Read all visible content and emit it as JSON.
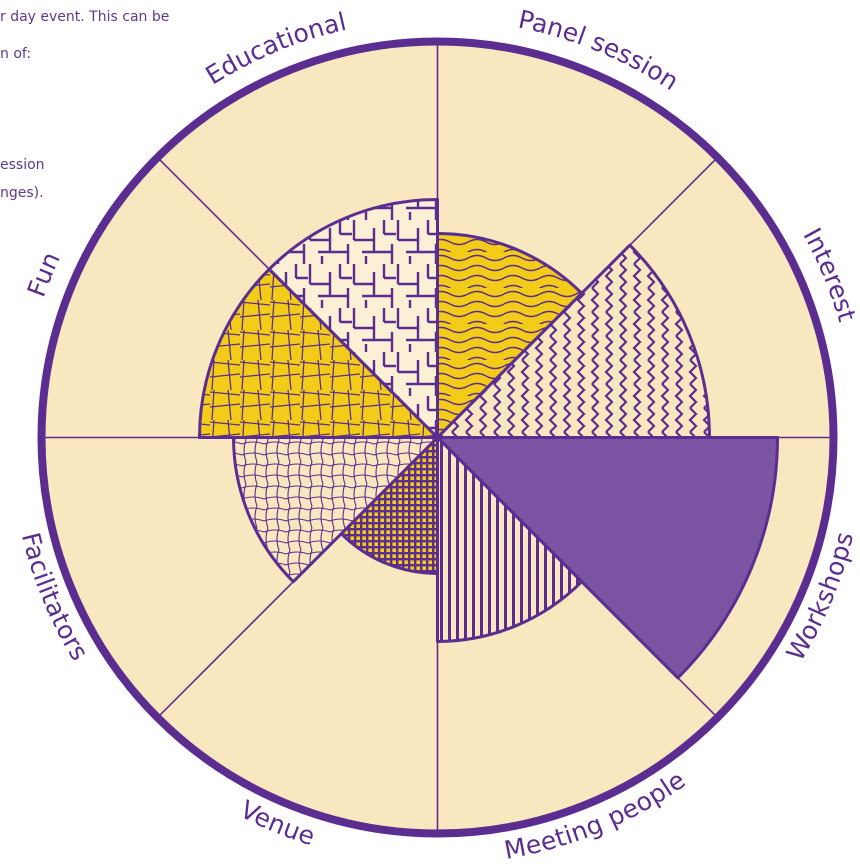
{
  "intro_fragments": [
    "r day event. This can be",
    "n of:",
    "ession",
    "nges)."
  ],
  "colors": {
    "background": "#f9e8bf",
    "outline": "#5b2d90",
    "yellow": "#f2cc18",
    "purple": "#7b55a4",
    "pattern_base": "#f9e8bf"
  },
  "chart_data": {
    "type": "polar-area",
    "categories": [
      "Panel session",
      "Interest",
      "Workshops",
      "Meeting people",
      "Venue",
      "Facilitators",
      "Fun",
      "Educational"
    ],
    "values": [
      6,
      8,
      10,
      6,
      4,
      6,
      7,
      7
    ],
    "max": 10,
    "fills": [
      "yellow-woodgrain",
      "vertical-wavy-lines",
      "solid-purple",
      "vertical-stripes",
      "purple-dense-grid",
      "cream-net",
      "yellow-grid",
      "cream-maze"
    ]
  }
}
